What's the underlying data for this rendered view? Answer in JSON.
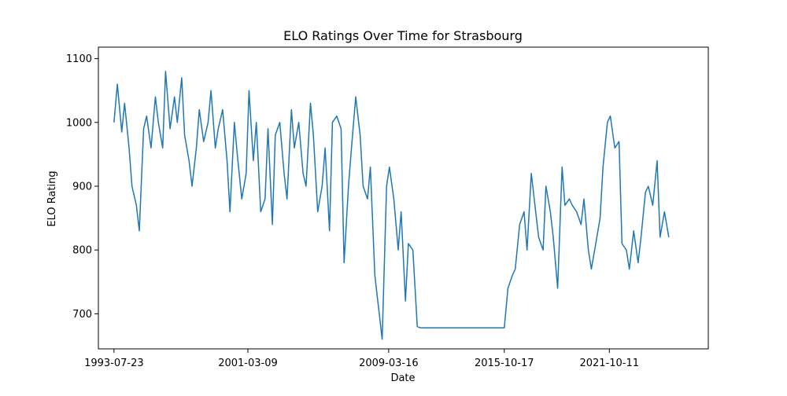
{
  "chart_data": {
    "type": "line",
    "title": "ELO Ratings Over Time for Strasbourg",
    "xlabel": "Date",
    "ylabel": "ELO Rating",
    "x_ticks": [
      "1993-07-23",
      "2001-03-09",
      "2009-03-16",
      "2015-10-17",
      "2021-10-11"
    ],
    "y_ticks": [
      700,
      800,
      900,
      1000,
      1100
    ],
    "ylim": [
      645,
      1118
    ],
    "xlim": [
      "1992-09-01",
      "2027-06-01"
    ],
    "grid": false,
    "line_color": "#1f77b4",
    "series": [
      {
        "x": [
          "1993-07-23",
          "1993-10-01",
          "1994-01-01",
          "1994-03-01",
          "1994-06-01",
          "1994-08-01",
          "1994-11-01",
          "1995-01-01",
          "1995-04-01",
          "1995-06-01",
          "1995-09-01",
          "1995-12-01",
          "1996-02-01",
          "1996-05-01",
          "1996-07-01",
          "1996-10-01",
          "1997-01-01",
          "1997-03-01",
          "1997-06-01",
          "1997-08-01",
          "1997-11-01",
          "1998-01-01",
          "1998-04-01",
          "1998-06-01",
          "1998-09-01",
          "1998-12-01",
          "1999-02-01",
          "1999-05-01",
          "1999-07-01",
          "1999-10-01",
          "2000-01-01",
          "2000-03-01",
          "2000-06-01",
          "2000-08-01",
          "2000-11-01",
          "2001-02-01",
          "2001-04-01",
          "2001-07-01",
          "2001-09-01",
          "2001-12-01",
          "2002-03-01",
          "2002-05-01",
          "2002-08-01",
          "2002-10-01",
          "2003-01-01",
          "2003-04-01",
          "2003-06-01",
          "2003-09-01",
          "2003-11-01",
          "2004-02-01",
          "2004-05-01",
          "2004-07-01",
          "2004-10-01",
          "2004-12-01",
          "2005-03-01",
          "2005-06-01",
          "2005-08-01",
          "2005-11-01",
          "2006-01-01",
          "2006-04-01",
          "2006-07-01",
          "2006-09-01",
          "2006-12-01",
          "2007-02-01",
          "2007-05-01",
          "2007-08-01",
          "2007-10-01",
          "2008-01-01",
          "2008-03-01",
          "2008-06-01",
          "2008-09-01",
          "2008-11-01",
          "2009-02-01",
          "2009-04-01",
          "2009-07-01",
          "2009-10-01",
          "2009-12-01",
          "2010-03-01",
          "2010-05-01",
          "2010-08-01",
          "2010-11-01",
          "2011-01-01",
          "2011-04-01",
          "2011-06-01",
          "2015-06-01",
          "2015-10-17",
          "2016-01-01",
          "2016-04-01",
          "2016-06-01",
          "2016-09-01",
          "2016-12-01",
          "2017-02-01",
          "2017-05-01",
          "2017-07-01",
          "2017-10-01",
          "2018-01-01",
          "2018-03-01",
          "2018-06-01",
          "2018-08-01",
          "2018-11-01",
          "2019-02-01",
          "2019-04-01",
          "2019-07-01",
          "2019-09-01",
          "2019-12-01",
          "2020-03-01",
          "2020-05-01",
          "2020-08-01",
          "2020-10-01",
          "2021-01-01",
          "2021-04-01",
          "2021-06-01",
          "2021-09-01",
          "2021-11-01",
          "2022-02-01",
          "2022-05-01",
          "2022-07-01",
          "2022-10-01",
          "2022-12-01",
          "2023-03-01",
          "2023-06-01",
          "2023-08-01",
          "2023-11-01",
          "2024-01-01",
          "2024-04-01",
          "2024-07-01",
          "2024-09-01",
          "2024-12-01",
          "2025-03-01"
        ],
        "values": [
          1000,
          1060,
          985,
          1030,
          960,
          900,
          870,
          830,
          990,
          1010,
          960,
          1040,
          1000,
          960,
          1080,
          990,
          1040,
          1000,
          1070,
          980,
          940,
          900,
          960,
          1020,
          970,
          1000,
          1050,
          960,
          990,
          1020,
          940,
          860,
          1000,
          950,
          880,
          920,
          1050,
          940,
          1000,
          860,
          880,
          990,
          840,
          980,
          1000,
          920,
          880,
          1020,
          960,
          1000,
          920,
          900,
          1030,
          980,
          860,
          900,
          960,
          830,
          1000,
          1010,
          990,
          780,
          900,
          960,
          1040,
          980,
          900,
          880,
          930,
          760,
          700,
          660,
          900,
          930,
          880,
          800,
          860,
          720,
          810,
          800,
          680,
          678,
          678,
          678,
          678,
          678,
          740,
          760,
          770,
          840,
          860,
          800,
          920,
          880,
          820,
          800,
          900,
          860,
          820,
          740,
          930,
          870,
          880,
          870,
          860,
          840,
          880,
          800,
          770,
          810,
          850,
          930,
          1000,
          1010,
          960,
          970,
          810,
          800,
          770,
          830,
          780,
          820,
          890,
          900,
          870,
          940,
          820,
          860,
          820
        ]
      }
    ]
  }
}
